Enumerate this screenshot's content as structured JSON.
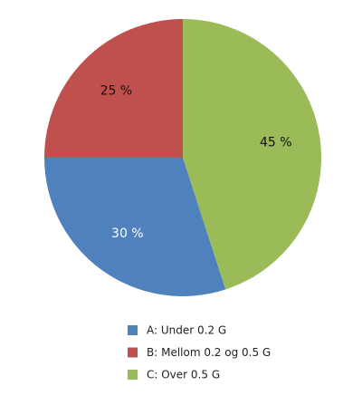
{
  "chart_data": {
    "type": "pie",
    "categories": [
      "A: Under 0.2 G",
      "B: Mellom 0.2 og 0.5 G",
      "C: Over 0.5 G"
    ],
    "values": [
      30,
      25,
      45
    ],
    "value_labels": [
      "30 %",
      "25 %",
      "45 %"
    ],
    "colors": [
      "#4f81bd",
      "#c0504d",
      "#9bbb59"
    ]
  }
}
